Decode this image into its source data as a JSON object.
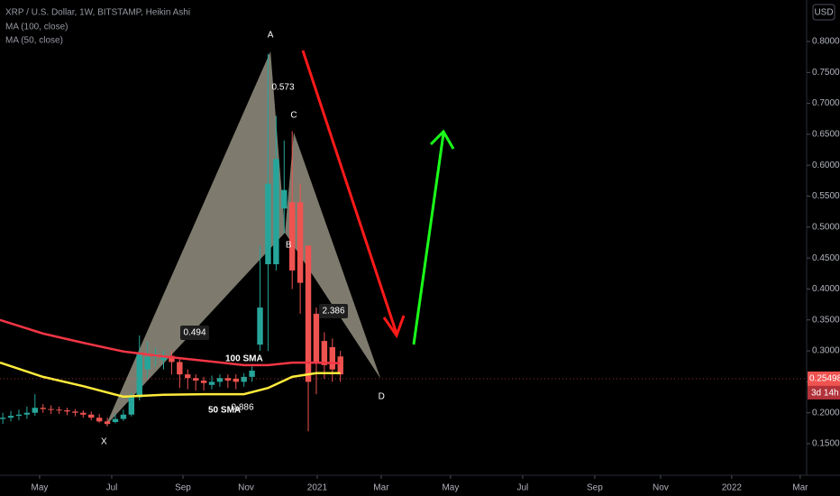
{
  "chart_data": {
    "type": "candlestick",
    "title": "XRP / U.S. Dollar, 1W, BITSTAMP, Heikin Ashi",
    "indicators": [
      "MA (100, close)",
      "MA (50, close)"
    ],
    "currency": "USD",
    "up_color": "#26a69a",
    "down_color": "#ef5350",
    "x": [
      0,
      1,
      2,
      3,
      4,
      5,
      6,
      7,
      8,
      9,
      10,
      11,
      12,
      13,
      14,
      15,
      16,
      17,
      18,
      19,
      20,
      21,
      22,
      23,
      24,
      25,
      26,
      27,
      28,
      29,
      30,
      31,
      32,
      33,
      34,
      35,
      36,
      37,
      38,
      39,
      40,
      41,
      42
    ],
    "open": [
      0.19,
      0.192,
      0.195,
      0.197,
      0.2,
      0.208,
      0.206,
      0.205,
      0.204,
      0.202,
      0.2,
      0.197,
      0.192,
      0.186,
      0.185,
      0.19,
      0.197,
      0.225,
      0.27,
      0.29,
      0.285,
      0.292,
      0.282,
      0.262,
      0.256,
      0.252,
      0.245,
      0.25,
      0.256,
      0.255,
      0.25,
      0.258,
      0.31,
      0.44,
      0.44,
      0.53,
      0.54,
      0.54,
      0.47,
      0.36,
      0.316,
      0.306,
      0.291
    ],
    "high": [
      0.2,
      0.203,
      0.205,
      0.21,
      0.23,
      0.214,
      0.212,
      0.21,
      0.208,
      0.206,
      0.204,
      0.202,
      0.198,
      0.192,
      0.198,
      0.205,
      0.232,
      0.325,
      0.315,
      0.305,
      0.3,
      0.3,
      0.29,
      0.27,
      0.262,
      0.258,
      0.26,
      0.262,
      0.262,
      0.262,
      0.264,
      0.275,
      0.47,
      0.78,
      0.68,
      0.64,
      0.655,
      0.57,
      0.47,
      0.37,
      0.33,
      0.32,
      0.3
    ],
    "low": [
      0.182,
      0.186,
      0.188,
      0.19,
      0.195,
      0.2,
      0.198,
      0.198,
      0.196,
      0.194,
      0.192,
      0.188,
      0.184,
      0.178,
      0.183,
      0.187,
      0.194,
      0.22,
      0.255,
      0.275,
      0.27,
      0.262,
      0.24,
      0.238,
      0.236,
      0.236,
      0.238,
      0.242,
      0.24,
      0.238,
      0.242,
      0.25,
      0.3,
      0.3,
      0.43,
      0.49,
      0.4,
      0.36,
      0.17,
      0.23,
      0.255,
      0.25,
      0.25
    ],
    "close": [
      0.192,
      0.195,
      0.197,
      0.2,
      0.208,
      0.206,
      0.205,
      0.204,
      0.202,
      0.2,
      0.197,
      0.192,
      0.186,
      0.182,
      0.19,
      0.197,
      0.225,
      0.295,
      0.29,
      0.295,
      0.292,
      0.282,
      0.262,
      0.256,
      0.252,
      0.248,
      0.25,
      0.256,
      0.252,
      0.25,
      0.258,
      0.268,
      0.37,
      0.57,
      0.61,
      0.56,
      0.43,
      0.41,
      0.25,
      0.28,
      0.277,
      0.27,
      0.262
    ],
    "moving_averages": [
      {
        "name": "100 SMA",
        "color": "#f23645",
        "x": [
          -0.35,
          5,
          10,
          15,
          20,
          25,
          30,
          33,
          36,
          39,
          42
        ],
        "values": [
          0.35,
          0.328,
          0.313,
          0.299,
          0.291,
          0.284,
          0.277,
          0.277,
          0.281,
          0.281,
          0.28
        ]
      },
      {
        "name": "50 SMA",
        "color": "#ffeb3b",
        "x": [
          -0.35,
          5,
          10,
          15,
          20,
          25,
          30,
          33,
          36,
          39,
          42
        ],
        "values": [
          0.281,
          0.258,
          0.243,
          0.226,
          0.229,
          0.23,
          0.23,
          0.24,
          0.258,
          0.264,
          0.264
        ]
      }
    ],
    "pattern": {
      "color": "rgba(230,224,200,0.55)",
      "points": [
        {
          "label": "X",
          "x": 12.8,
          "y": 0.179
        },
        {
          "label": "A",
          "x": 33.3,
          "y": 0.784
        },
        {
          "label": "B",
          "x": 35.1,
          "y": 0.491
        },
        {
          "label": "C",
          "x": 36.2,
          "y": 0.653
        },
        {
          "label": "D",
          "x": 47.0,
          "y": 0.255
        }
      ],
      "ratios": [
        0.573,
        0.494,
        2.386,
        0.886
      ]
    },
    "last_price": 0.25498,
    "countdown": "3d 14h",
    "xlim": [
      -0.35,
      100
    ],
    "xticks": [
      {
        "value": 4.58,
        "label": "May"
      },
      {
        "value": 13.55,
        "label": "Jul"
      },
      {
        "value": 22.41,
        "label": "Sep"
      },
      {
        "value": 30.26,
        "label": "Nov"
      },
      {
        "value": 39.11,
        "label": "2021"
      },
      {
        "value": 47.07,
        "label": "Mar"
      },
      {
        "value": 55.7,
        "label": "May"
      },
      {
        "value": 64.67,
        "label": "Jul"
      },
      {
        "value": 73.64,
        "label": "Sep"
      },
      {
        "value": 81.83,
        "label": "Nov"
      },
      {
        "value": 90.68,
        "label": "2022"
      },
      {
        "value": 99.2,
        "label": "Mar"
      }
    ],
    "ylim": [
      0.099,
      0.867
    ],
    "yticks": [
      {
        "value": 0.15,
        "label": "0.15000"
      },
      {
        "value": 0.2,
        "label": "0.20000"
      },
      {
        "value": 0.25,
        "label": "0.25000"
      },
      {
        "value": 0.3,
        "label": "0.30000"
      },
      {
        "value": 0.35,
        "label": "0.35000"
      },
      {
        "value": 0.4,
        "label": "0.40000"
      },
      {
        "value": 0.45,
        "label": "0.45000"
      },
      {
        "value": 0.5,
        "label": "0.50000"
      },
      {
        "value": 0.55,
        "label": "0.55000"
      },
      {
        "value": 0.6,
        "label": "0.60000"
      },
      {
        "value": 0.65,
        "label": "0.65000"
      },
      {
        "value": 0.7,
        "label": "0.70000"
      },
      {
        "value": 0.75,
        "label": "0.75000"
      },
      {
        "value": 0.8,
        "label": "0.80000"
      }
    ],
    "grid": false
  }
}
